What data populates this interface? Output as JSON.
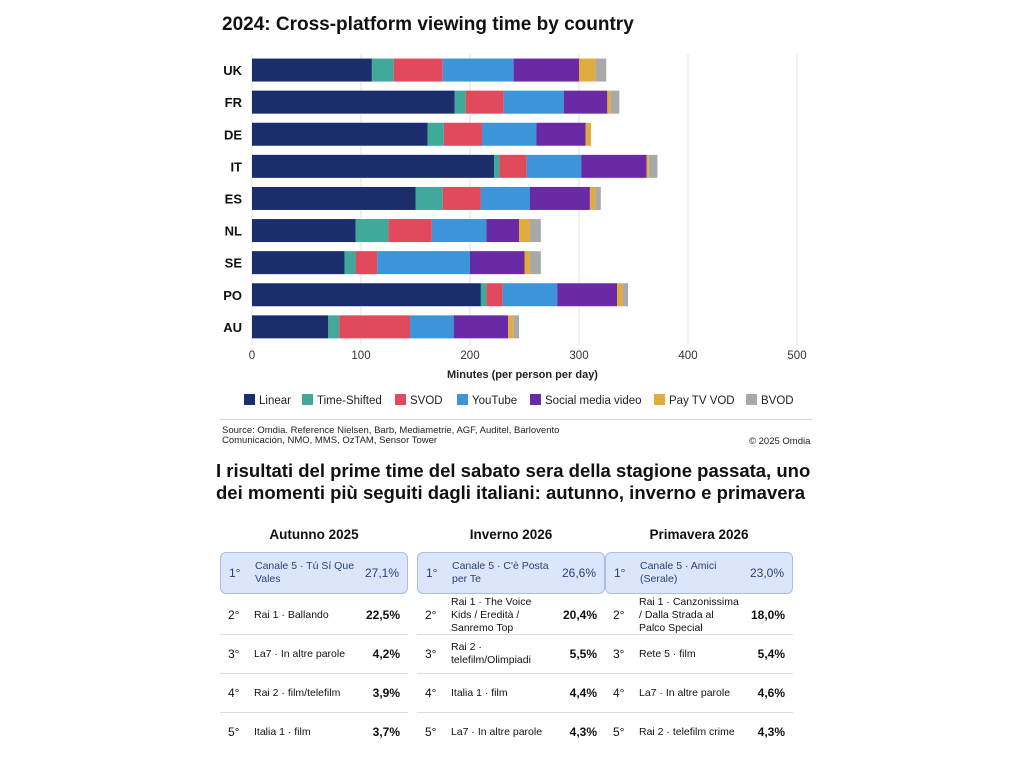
{
  "chart_data": {
    "type": "bar",
    "orientation": "horizontal",
    "stacked": true,
    "title": "2024: Cross-platform viewing time by country",
    "xlabel": "Minutes (per person per day)",
    "ylabel": "",
    "xlim": [
      0,
      500
    ],
    "xticks": [
      "0",
      "100",
      "200",
      "300",
      "400",
      "500"
    ],
    "grid": "vertical",
    "legend_position": "bottom",
    "categories": [
      "UK",
      "FR",
      "DE",
      "IT",
      "ES",
      "NL",
      "SE",
      "PO",
      "AU"
    ],
    "series": [
      {
        "name": "Linear",
        "color": "#1b2e6b",
        "values": [
          110,
          186,
          161,
          222,
          150,
          95,
          85,
          210,
          70
        ]
      },
      {
        "name": "Time-Shifted",
        "color": "#3fa99a",
        "values": [
          20,
          10,
          15,
          5,
          25,
          30,
          10,
          5,
          10
        ]
      },
      {
        "name": "SVOD",
        "color": "#e04a5c",
        "values": [
          45,
          35,
          35,
          25,
          35,
          40,
          20,
          15,
          65
        ]
      },
      {
        "name": "YouTube",
        "color": "#3b95d8",
        "values": [
          65,
          55,
          50,
          50,
          45,
          50,
          85,
          50,
          40
        ]
      },
      {
        "name": "Social media video",
        "color": "#6a2aa6",
        "values": [
          60,
          40,
          45,
          60,
          55,
          30,
          50,
          55,
          50
        ]
      },
      {
        "name": "Pay TV VOD",
        "color": "#e0ac3c",
        "values": [
          15,
          3,
          5,
          2,
          5,
          10,
          5,
          5,
          5
        ]
      },
      {
        "name": "BVOD",
        "color": "#a9a9a9",
        "values": [
          10,
          8,
          0,
          8,
          5,
          10,
          10,
          5,
          5
        ]
      }
    ]
  },
  "source_note": "Source: Omdia. Reference Nielsen, Barb, Mediametrie, AGF, Auditel, Barlovento Comunicación, NMO, MMS, OzTAM, Sensor Tower",
  "copyright": "© 2025 Omdia",
  "heading": "I risultati del prime time del sabato sera della stagione passata, uno dei momenti più seguiti dagli italiani: autunno, inverno e primavera",
  "seasons": [
    {
      "title": "Autunno 2025",
      "rows": [
        {
          "rank": "1°",
          "program": "Canale 5 · Tú Sí Que Vales",
          "share": "27,1%"
        },
        {
          "rank": "2°",
          "program": "Rai 1 · Ballando",
          "share": "22,5%"
        },
        {
          "rank": "3°",
          "program": "La7 · In altre parole",
          "share": "4,2%"
        },
        {
          "rank": "4°",
          "program": "Rai 2 · film/telefilm",
          "share": "3,9%"
        },
        {
          "rank": "5°",
          "program": "Italia 1 · film",
          "share": "3,7%"
        }
      ]
    },
    {
      "title": "Inverno 2026",
      "rows": [
        {
          "rank": "1°",
          "program": "Canale 5 · C'è Posta per Te",
          "share": "26,6%"
        },
        {
          "rank": "2°",
          "program": "Rai 1 · The Voice Kids / Eredità / Sanremo Top",
          "share": "20,4%"
        },
        {
          "rank": "3°",
          "program": "Rai 2 · telefilm/Olimpiadi",
          "share": "5,5%"
        },
        {
          "rank": "4°",
          "program": "Italia 1 · film",
          "share": "4,4%"
        },
        {
          "rank": "5°",
          "program": "La7 · In altre parole",
          "share": "4,3%"
        }
      ]
    },
    {
      "title": "Primavera 2026",
      "rows": [
        {
          "rank": "1°",
          "program": "Canale 5 · Amici (Serale)",
          "share": "23,0%"
        },
        {
          "rank": "2°",
          "program": "Rai 1 · Canzonissima / Dalla Strada al Palco Special",
          "share": "18,0%"
        },
        {
          "rank": "3°",
          "program": "Rete 5 · film",
          "share": "5,4%"
        },
        {
          "rank": "4°",
          "program": "La7 · In altre parole",
          "share": "4,6%"
        },
        {
          "rank": "5°",
          "program": "Rai 2 · telefilm crime",
          "share": "4,3%"
        }
      ]
    }
  ]
}
